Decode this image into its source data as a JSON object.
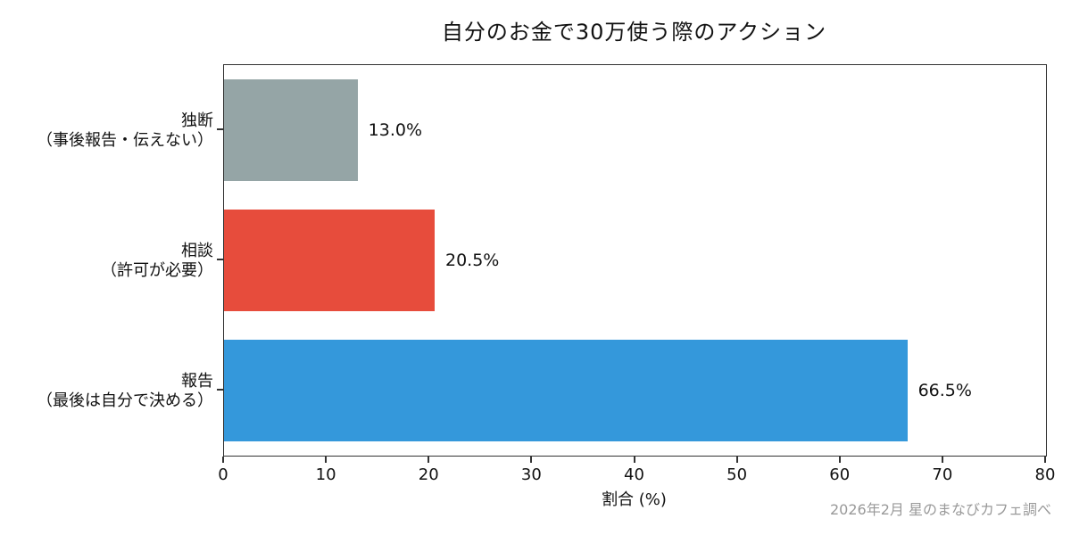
{
  "chart_data": {
    "type": "bar",
    "orientation": "horizontal",
    "title": "自分のお金で30万使う際のアクション",
    "categories": [
      {
        "line1": "独断",
        "line2": "（事後報告・伝えない）"
      },
      {
        "line1": "相談",
        "line2": "（許可が必要）"
      },
      {
        "line1": "報告",
        "line2": "（最後は自分で決める）"
      }
    ],
    "values": [
      13.0,
      20.5,
      66.5
    ],
    "value_labels": [
      "13.0%",
      "20.5%",
      "66.5%"
    ],
    "bar_colors": [
      "#95a5a6",
      "#e74c3c",
      "#3498db"
    ],
    "xlabel": "割合 (%)",
    "xlim": [
      0,
      80
    ],
    "xticks": [
      0,
      10,
      20,
      30,
      40,
      50,
      60,
      70,
      80
    ],
    "grid": false,
    "legend": null,
    "source_note": "2026年2月 星のまなびカフェ調べ"
  }
}
